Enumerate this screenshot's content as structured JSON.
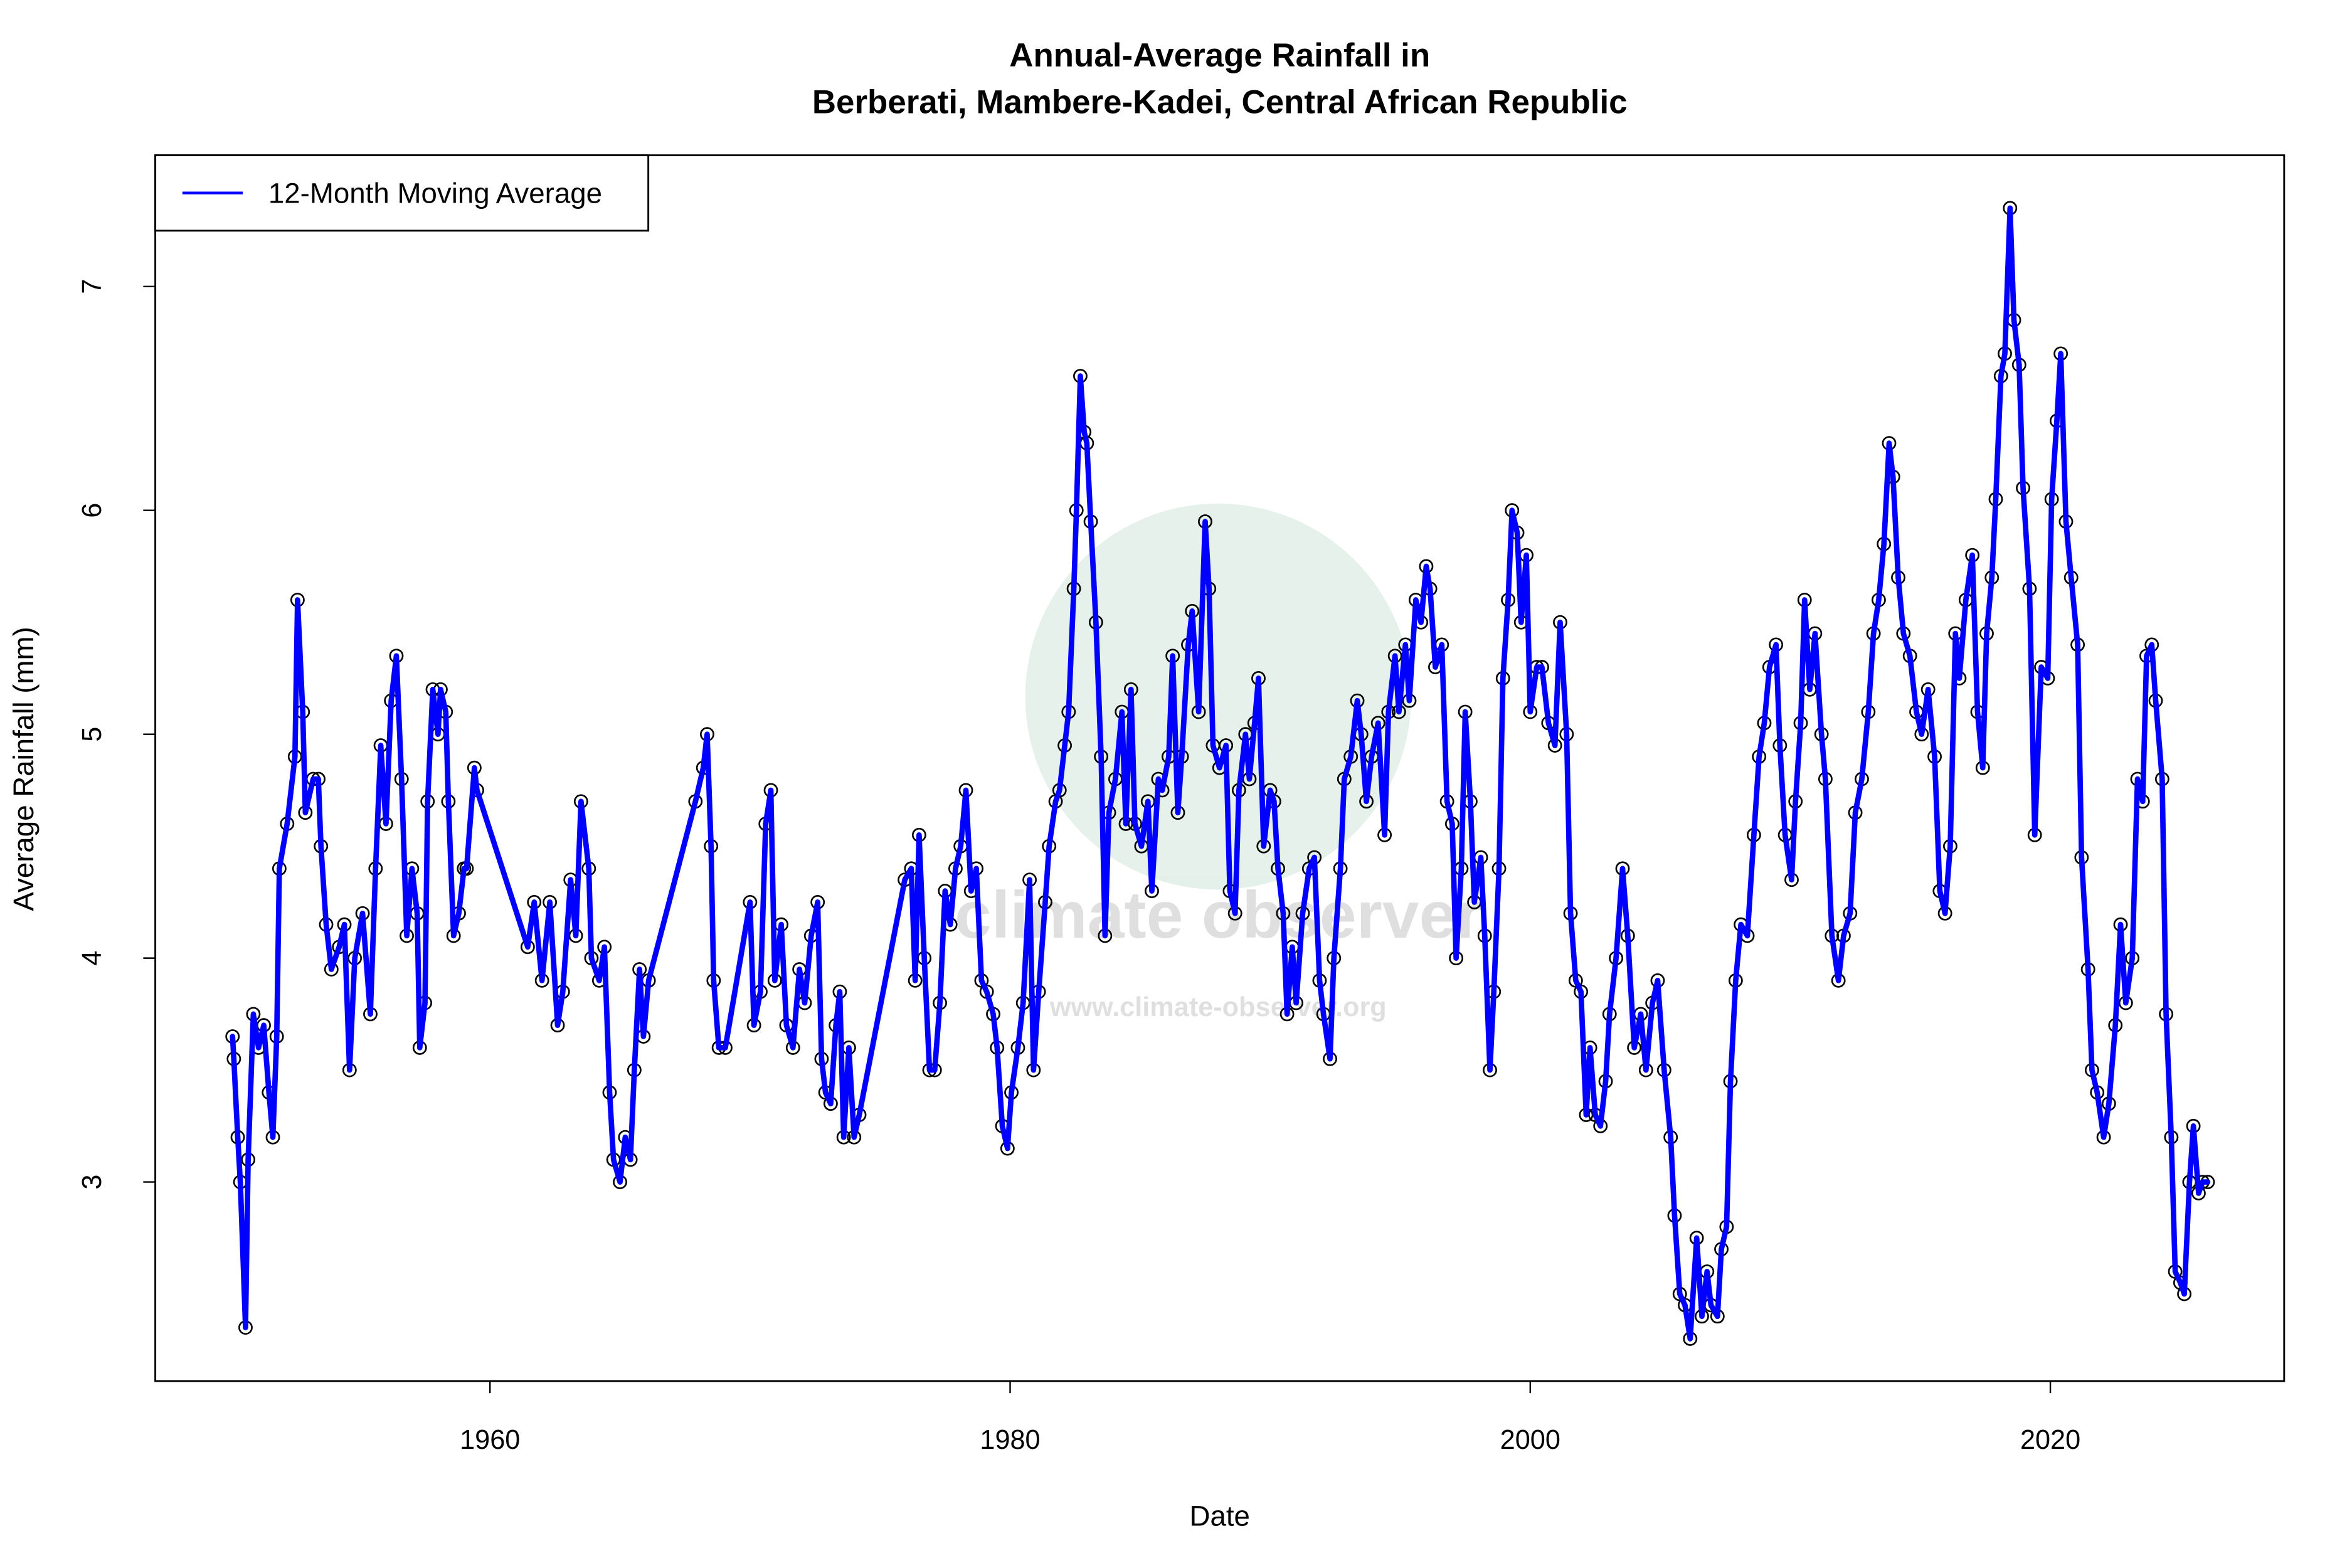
{
  "chart_data": {
    "type": "line",
    "title": [
      "Annual-Average Rainfall in",
      "Berberati, Mambere-Kadei, Central African Republic"
    ],
    "x_label": "Date",
    "y_label": "Average Rainfall (mm)",
    "watermark": "climate observer",
    "watermark_url": "www.climate-observer.org",
    "legend": "topleft",
    "markers": true,
    "xlim": [
      1947.13,
      2028.99
    ],
    "ylim": [
      2.111,
      7.586
    ],
    "xticks": [
      1960,
      1980,
      2000,
      2020
    ],
    "yticks": [
      3,
      4,
      5,
      6,
      7
    ],
    "x": [
      1950.1,
      1950.15,
      1950.3,
      1950.4,
      1950.6,
      1950.7,
      1950.9,
      1951.1,
      1951.3,
      1951.5,
      1951.65,
      1951.8,
      1951.9,
      1952.2,
      1952.5,
      1952.6,
      1952.8,
      1952.9,
      1953.2,
      1953.4,
      1953.5,
      1953.7,
      1953.9,
      1954.2,
      1954.4,
      1954.6,
      1954.8,
      1955.1,
      1955.4,
      1955.6,
      1955.8,
      1956.0,
      1956.2,
      1956.4,
      1956.6,
      1956.8,
      1957.0,
      1957.2,
      1957.3,
      1957.5,
      1957.6,
      1957.8,
      1958.0,
      1958.1,
      1958.3,
      1958.4,
      1958.6,
      1958.8,
      1959.0,
      1959.1,
      1959.4,
      1959.5,
      1961.45,
      1961.7,
      1962.0,
      1962.3,
      1962.6,
      1962.8,
      1963.1,
      1963.3,
      1963.5,
      1963.8,
      1963.9,
      1964.2,
      1964.4,
      1964.6,
      1964.75,
      1965.0,
      1965.2,
      1965.4,
      1965.55,
      1965.75,
      1965.9,
      1966.1,
      1967.9,
      1968.2,
      1968.35,
      1968.5,
      1968.6,
      1968.8,
      1969.05,
      1970.0,
      1970.15,
      1970.4,
      1970.6,
      1970.8,
      1970.95,
      1971.2,
      1971.4,
      1971.65,
      1971.9,
      1972.1,
      1972.35,
      1972.6,
      1972.75,
      1972.9,
      1973.1,
      1973.3,
      1973.45,
      1973.6,
      1973.8,
      1974.0,
      1974.2,
      1975.95,
      1976.2,
      1976.35,
      1976.5,
      1976.7,
      1976.9,
      1977.1,
      1977.3,
      1977.5,
      1977.7,
      1977.9,
      1978.1,
      1978.3,
      1978.5,
      1978.7,
      1978.9,
      1979.1,
      1979.35,
      1979.5,
      1979.7,
      1979.9,
      1980.05,
      1980.3,
      1980.5,
      1980.75,
      1980.9,
      1981.1,
      1981.35,
      1981.5,
      1981.75,
      1981.9,
      1982.1,
      1982.25,
      1982.45,
      1982.55,
      1982.7,
      1982.85,
      1982.95,
      1983.1,
      1983.3,
      1983.5,
      1983.65,
      1983.8,
      1984.05,
      1984.3,
      1984.45,
      1984.65,
      1984.8,
      1985.05,
      1985.3,
      1985.45,
      1985.7,
      1985.85,
      1986.1,
      1986.25,
      1986.45,
      1986.6,
      1986.85,
      1987.0,
      1987.25,
      1987.5,
      1987.65,
      1987.8,
      1988.05,
      1988.3,
      1988.45,
      1988.65,
      1988.8,
      1989.05,
      1989.2,
      1989.4,
      1989.55,
      1989.75,
      1990.0,
      1990.15,
      1990.3,
      1990.5,
      1990.65,
      1990.85,
      1991.0,
      1991.25,
      1991.5,
      1991.7,
      1991.9,
      1992.05,
      1992.3,
      1992.45,
      1992.7,
      1992.85,
      1993.1,
      1993.35,
      1993.5,
      1993.7,
      1993.9,
      1994.15,
      1994.4,
      1994.55,
      1994.8,
      1994.95,
      1995.2,
      1995.35,
      1995.6,
      1995.8,
      1996.0,
      1996.15,
      1996.35,
      1996.6,
      1996.8,
      1997.0,
      1997.15,
      1997.35,
      1997.5,
      1997.7,
      1997.85,
      1998.1,
      1998.25,
      1998.45,
      1998.6,
      1998.8,
      1998.95,
      1999.15,
      1999.3,
      1999.5,
      1999.65,
      1999.85,
      2000.0,
      2000.25,
      2000.45,
      2000.7,
      2000.95,
      2001.15,
      2001.4,
      2001.55,
      2001.75,
      2001.95,
      2002.15,
      2002.3,
      2002.5,
      2002.7,
      2002.9,
      2003.05,
      2003.3,
      2003.55,
      2003.75,
      2004.0,
      2004.25,
      2004.45,
      2004.7,
      2004.9,
      2005.15,
      2005.4,
      2005.55,
      2005.75,
      2005.95,
      2006.15,
      2006.4,
      2006.6,
      2006.8,
      2006.95,
      2007.2,
      2007.35,
      2007.55,
      2007.7,
      2007.9,
      2008.1,
      2008.35,
      2008.6,
      2008.8,
      2009.0,
      2009.2,
      2009.45,
      2009.6,
      2009.8,
      2010.05,
      2010.2,
      2010.4,
      2010.55,
      2010.75,
      2010.95,
      2011.2,
      2011.35,
      2011.6,
      2011.85,
      2012.05,
      2012.3,
      2012.5,
      2012.75,
      2013.0,
      2013.2,
      2013.4,
      2013.6,
      2013.8,
      2013.95,
      2014.15,
      2014.35,
      2014.6,
      2014.85,
      2015.05,
      2015.3,
      2015.55,
      2015.75,
      2015.95,
      2016.15,
      2016.35,
      2016.5,
      2016.75,
      2017.0,
      2017.2,
      2017.4,
      2017.55,
      2017.75,
      2017.9,
      2018.1,
      2018.25,
      2018.45,
      2018.6,
      2018.8,
      2018.95,
      2019.2,
      2019.4,
      2019.65,
      2019.9,
      2020.05,
      2020.25,
      2020.4,
      2020.6,
      2020.8,
      2021.05,
      2021.2,
      2021.45,
      2021.6,
      2021.8,
      2022.05,
      2022.25,
      2022.5,
      2022.7,
      2022.9,
      2023.15,
      2023.35,
      2023.55,
      2023.7,
      2023.9,
      2024.05,
      2024.3,
      2024.45,
      2024.65,
      2024.8,
      2025.0,
      2025.15,
      2025.35,
      2025.5,
      2025.7,
      2025.85,
      2026.05
    ],
    "series": [
      {
        "name": "12-Month Moving Average",
        "color": "#0000ff",
        "values": [
          3.65,
          3.55,
          3.2,
          3.0,
          2.35,
          3.1,
          3.75,
          3.6,
          3.7,
          3.4,
          3.2,
          3.65,
          4.4,
          4.6,
          4.9,
          5.6,
          5.1,
          4.65,
          4.8,
          4.8,
          4.5,
          4.15,
          3.95,
          4.05,
          4.15,
          3.5,
          4.0,
          4.2,
          3.75,
          4.4,
          4.95,
          4.6,
          5.15,
          5.35,
          4.8,
          4.1,
          4.4,
          4.2,
          3.6,
          3.8,
          4.7,
          5.2,
          5.0,
          5.2,
          5.1,
          4.7,
          4.1,
          4.2,
          4.4,
          4.4,
          4.85,
          4.75,
          4.05,
          4.25,
          3.9,
          4.25,
          3.7,
          3.85,
          4.35,
          4.1,
          4.7,
          4.4,
          4.0,
          3.9,
          4.05,
          3.4,
          3.1,
          3.0,
          3.2,
          3.1,
          3.5,
          3.95,
          3.65,
          3.9,
          4.7,
          4.85,
          5.0,
          4.5,
          3.9,
          3.6,
          3.6,
          4.25,
          3.7,
          3.85,
          4.6,
          4.75,
          3.9,
          4.15,
          3.7,
          3.6,
          3.95,
          3.8,
          4.1,
          4.25,
          3.55,
          3.4,
          3.35,
          3.7,
          3.85,
          3.2,
          3.6,
          3.2,
          3.3,
          4.35,
          4.4,
          3.9,
          4.55,
          4.0,
          3.5,
          3.5,
          3.8,
          4.3,
          4.15,
          4.4,
          4.5,
          4.75,
          4.3,
          4.4,
          3.9,
          3.85,
          3.75,
          3.6,
          3.25,
          3.15,
          3.4,
          3.6,
          3.8,
          4.35,
          3.5,
          3.85,
          4.25,
          4.5,
          4.7,
          4.75,
          4.95,
          5.1,
          5.65,
          6.0,
          6.6,
          6.35,
          6.3,
          5.95,
          5.5,
          4.9,
          4.1,
          4.65,
          4.8,
          5.1,
          4.6,
          5.2,
          4.6,
          4.5,
          4.7,
          4.3,
          4.8,
          4.75,
          4.9,
          5.35,
          4.65,
          4.9,
          5.4,
          5.55,
          5.1,
          5.95,
          5.65,
          4.95,
          4.85,
          4.95,
          4.3,
          4.2,
          4.75,
          5.0,
          4.8,
          5.05,
          5.25,
          4.5,
          4.75,
          4.7,
          4.4,
          4.2,
          3.75,
          4.05,
          3.8,
          4.2,
          4.4,
          4.45,
          3.9,
          3.75,
          3.55,
          4.0,
          4.4,
          4.8,
          4.9,
          5.15,
          5.0,
          4.7,
          4.9,
          5.05,
          4.55,
          5.1,
          5.35,
          5.1,
          5.4,
          5.15,
          5.6,
          5.5,
          5.75,
          5.65,
          5.3,
          5.4,
          4.7,
          4.6,
          4.0,
          4.4,
          5.1,
          4.7,
          4.25,
          4.45,
          4.1,
          3.5,
          3.85,
          4.4,
          5.25,
          5.6,
          6.0,
          5.9,
          5.5,
          5.8,
          5.1,
          5.3,
          5.3,
          5.05,
          4.95,
          5.5,
          5.0,
          4.2,
          3.9,
          3.85,
          3.3,
          3.6,
          3.3,
          3.25,
          3.45,
          3.75,
          4.0,
          4.4,
          4.1,
          3.6,
          3.75,
          3.5,
          3.8,
          3.9,
          3.5,
          3.2,
          2.85,
          2.5,
          2.45,
          2.3,
          2.75,
          2.4,
          2.6,
          2.45,
          2.4,
          2.7,
          2.8,
          3.45,
          3.9,
          4.15,
          4.1,
          4.55,
          4.9,
          5.05,
          5.3,
          5.4,
          4.95,
          4.55,
          4.35,
          4.7,
          5.05,
          5.6,
          5.2,
          5.45,
          5.0,
          4.8,
          4.1,
          3.9,
          4.1,
          4.2,
          4.65,
          4.8,
          5.1,
          5.45,
          5.6,
          5.85,
          6.3,
          6.15,
          5.7,
          5.45,
          5.35,
          5.1,
          5.0,
          5.2,
          4.9,
          4.3,
          4.2,
          4.5,
          5.45,
          5.25,
          5.6,
          5.8,
          5.1,
          4.85,
          5.45,
          5.7,
          6.05,
          6.6,
          6.7,
          7.35,
          6.85,
          6.65,
          6.1,
          5.65,
          4.55,
          5.3,
          5.25,
          6.05,
          6.4,
          6.7,
          5.95,
          5.7,
          5.4,
          4.45,
          3.95,
          3.5,
          3.4,
          3.2,
          3.35,
          3.7,
          4.15,
          3.8,
          4.0,
          4.8,
          4.7,
          5.35,
          5.4,
          5.15,
          4.8,
          3.75,
          3.2,
          2.6,
          2.55,
          2.5,
          3.0,
          3.25,
          2.95,
          3.0,
          3.0
        ]
      }
    ]
  }
}
